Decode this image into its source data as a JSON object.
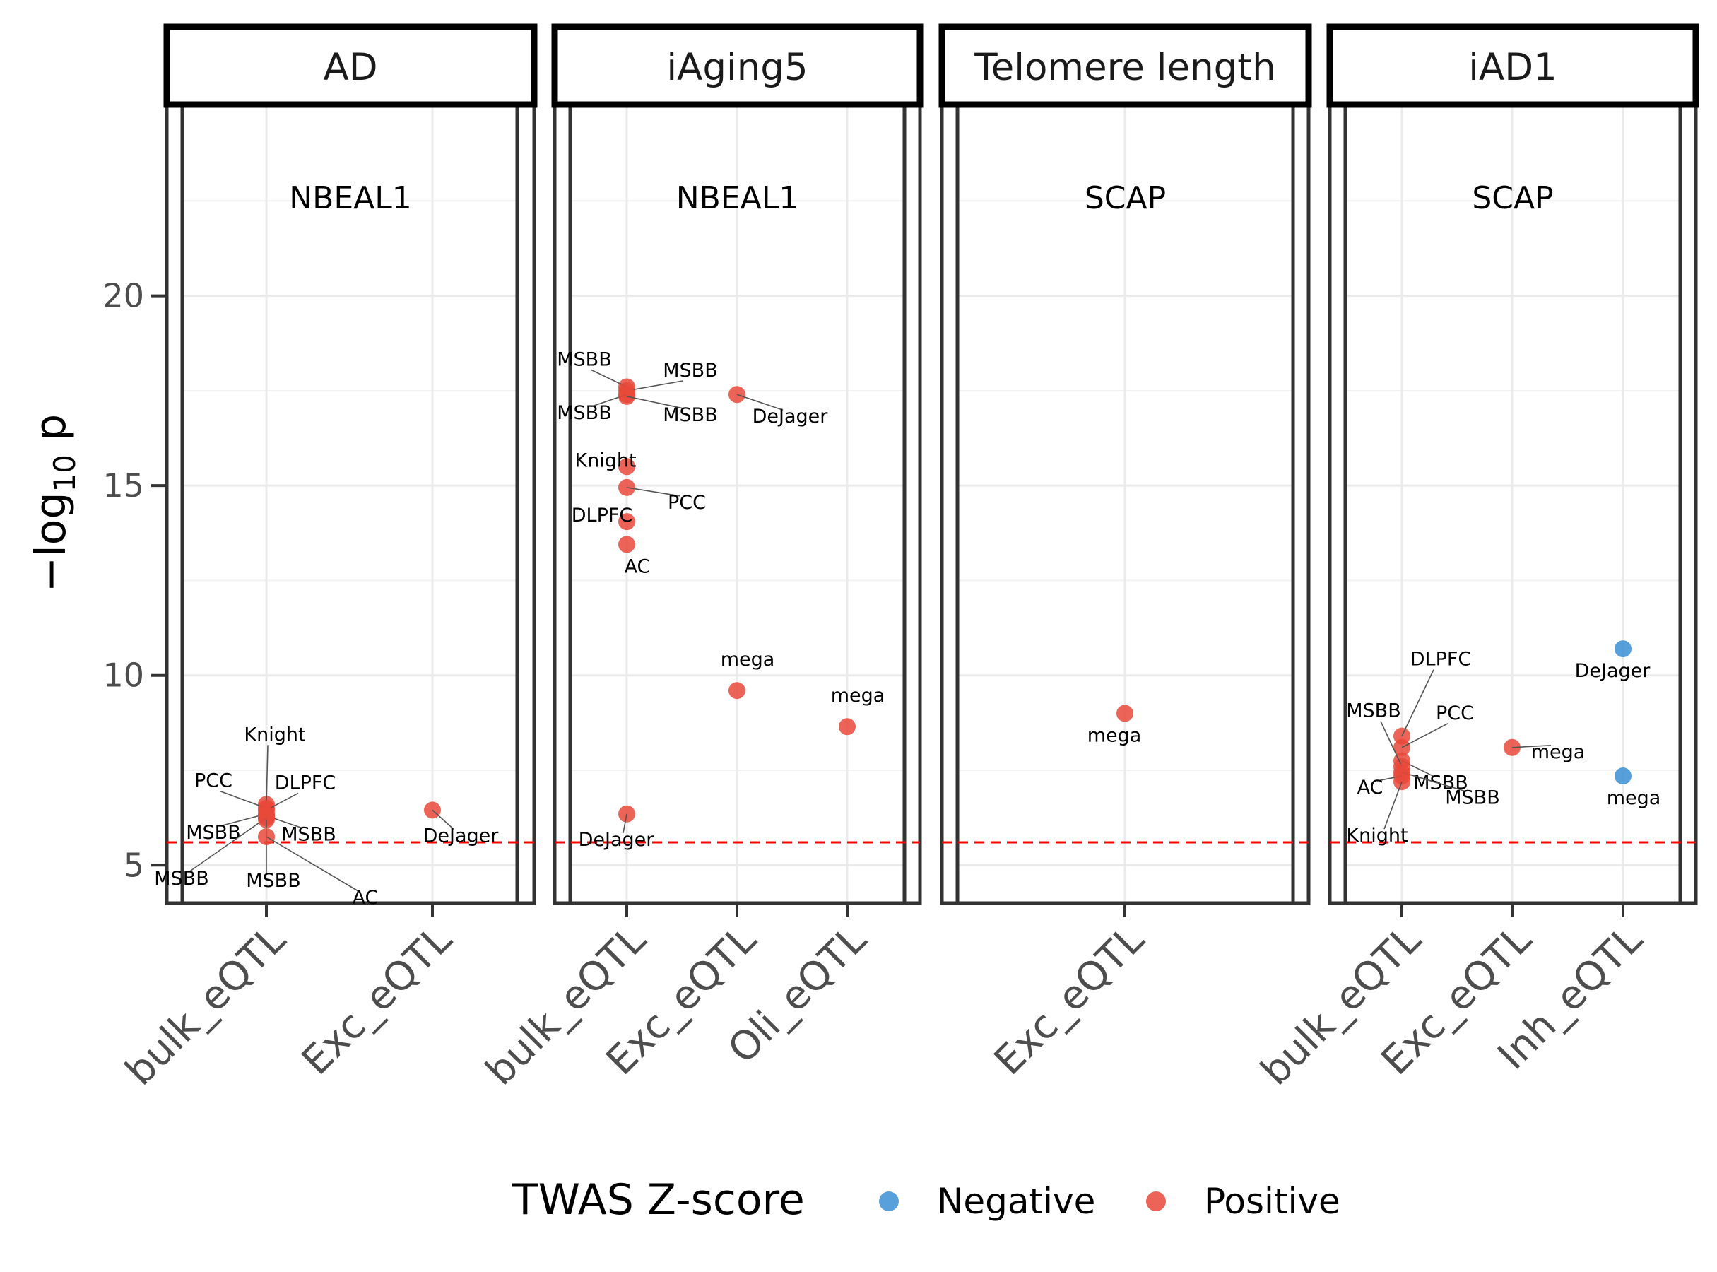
{
  "chart_data": {
    "type": "scatter",
    "ylabel_main": "−log",
    "ylabel_sub": "10",
    "ylabel_tail": " p",
    "ylim": [
      4,
      25
    ],
    "yticks": [
      5,
      10,
      15,
      20
    ],
    "threshold": 5.6,
    "threshold_color": "#ff0000",
    "legend": {
      "title": "TWAS Z-score",
      "items": [
        {
          "label": "Negative",
          "color": "#3a8fd6"
        },
        {
          "label": "Positive",
          "color": "#e8493a"
        }
      ],
      "position": "bottom"
    },
    "facets": [
      {
        "name": "AD",
        "gene": "NBEAL1",
        "categories": [
          "bulk_eQTL",
          "Exc_eQTL"
        ],
        "points": [
          {
            "x": "bulk_eQTL",
            "y": 6.6,
            "label": "Knight",
            "sign": "Positive"
          },
          {
            "x": "bulk_eQTL",
            "y": 6.5,
            "label": "PCC",
            "sign": "Positive"
          },
          {
            "x": "bulk_eQTL",
            "y": 6.45,
            "label": "DLPFC",
            "sign": "Positive"
          },
          {
            "x": "bulk_eQTL",
            "y": 6.35,
            "label": "MSBB",
            "sign": "Positive"
          },
          {
            "x": "bulk_eQTL",
            "y": 6.3,
            "label": "MSBB",
            "sign": "Positive"
          },
          {
            "x": "bulk_eQTL",
            "y": 6.25,
            "label": "MSBB",
            "sign": "Positive"
          },
          {
            "x": "bulk_eQTL",
            "y": 6.2,
            "label": "MSBB",
            "sign": "Positive"
          },
          {
            "x": "bulk_eQTL",
            "y": 5.75,
            "label": "AC",
            "sign": "Positive"
          },
          {
            "x": "Exc_eQTL",
            "y": 6.45,
            "label": "DeJager",
            "sign": "Positive"
          }
        ]
      },
      {
        "name": "iAging5",
        "gene": "NBEAL1",
        "categories": [
          "bulk_eQTL",
          "Exc_eQTL",
          "Oli_eQTL"
        ],
        "points": [
          {
            "x": "bulk_eQTL",
            "y": 17.6,
            "label": "MSBB",
            "sign": "Positive"
          },
          {
            "x": "bulk_eQTL",
            "y": 17.5,
            "label": "MSBB",
            "sign": "Positive"
          },
          {
            "x": "bulk_eQTL",
            "y": 17.4,
            "label": "MSBB",
            "sign": "Positive"
          },
          {
            "x": "bulk_eQTL",
            "y": 17.35,
            "label": "MSBB",
            "sign": "Positive"
          },
          {
            "x": "bulk_eQTL",
            "y": 15.5,
            "label": "Knight",
            "sign": "Positive"
          },
          {
            "x": "bulk_eQTL",
            "y": 14.95,
            "label": "PCC",
            "sign": "Positive"
          },
          {
            "x": "bulk_eQTL",
            "y": 14.05,
            "label": "DLPFC",
            "sign": "Positive"
          },
          {
            "x": "bulk_eQTL",
            "y": 13.45,
            "label": "AC",
            "sign": "Positive"
          },
          {
            "x": "bulk_eQTL",
            "y": 6.35,
            "label": "DeJager",
            "sign": "Positive"
          },
          {
            "x": "Exc_eQTL",
            "y": 17.4,
            "label": "DeJager",
            "sign": "Positive"
          },
          {
            "x": "Exc_eQTL",
            "y": 9.6,
            "label": "mega",
            "sign": "Positive"
          },
          {
            "x": "Oli_eQTL",
            "y": 8.65,
            "label": "mega",
            "sign": "Positive"
          }
        ]
      },
      {
        "name": "Telomere length",
        "gene": "SCAP",
        "categories": [
          "Exc_eQTL"
        ],
        "points": [
          {
            "x": "Exc_eQTL",
            "y": 9.0,
            "label": "mega",
            "sign": "Positive"
          }
        ]
      },
      {
        "name": "iAD1",
        "gene": "SCAP",
        "categories": [
          "bulk_eQTL",
          "Exc_eQTL",
          "Inh_eQTL"
        ],
        "points": [
          {
            "x": "bulk_eQTL",
            "y": 8.4,
            "label": "DLPFC",
            "sign": "Positive"
          },
          {
            "x": "bulk_eQTL",
            "y": 8.1,
            "label": "PCC",
            "sign": "Positive"
          },
          {
            "x": "bulk_eQTL",
            "y": 7.75,
            "label": "MSBB",
            "sign": "Positive"
          },
          {
            "x": "bulk_eQTL",
            "y": 7.6,
            "label": "MSBB",
            "sign": "Positive"
          },
          {
            "x": "bulk_eQTL",
            "y": 7.45,
            "label": "MSBB",
            "sign": "Positive"
          },
          {
            "x": "bulk_eQTL",
            "y": 7.35,
            "label": "AC",
            "sign": "Positive"
          },
          {
            "x": "bulk_eQTL",
            "y": 7.2,
            "label": "Knight",
            "sign": "Positive"
          },
          {
            "x": "Exc_eQTL",
            "y": 8.1,
            "label": "mega",
            "sign": "Positive"
          },
          {
            "x": "Inh_eQTL",
            "y": 10.7,
            "label": "DeJager",
            "sign": "Negative"
          },
          {
            "x": "Inh_eQTL",
            "y": 7.35,
            "label": "mega",
            "sign": "Negative"
          }
        ]
      }
    ]
  }
}
